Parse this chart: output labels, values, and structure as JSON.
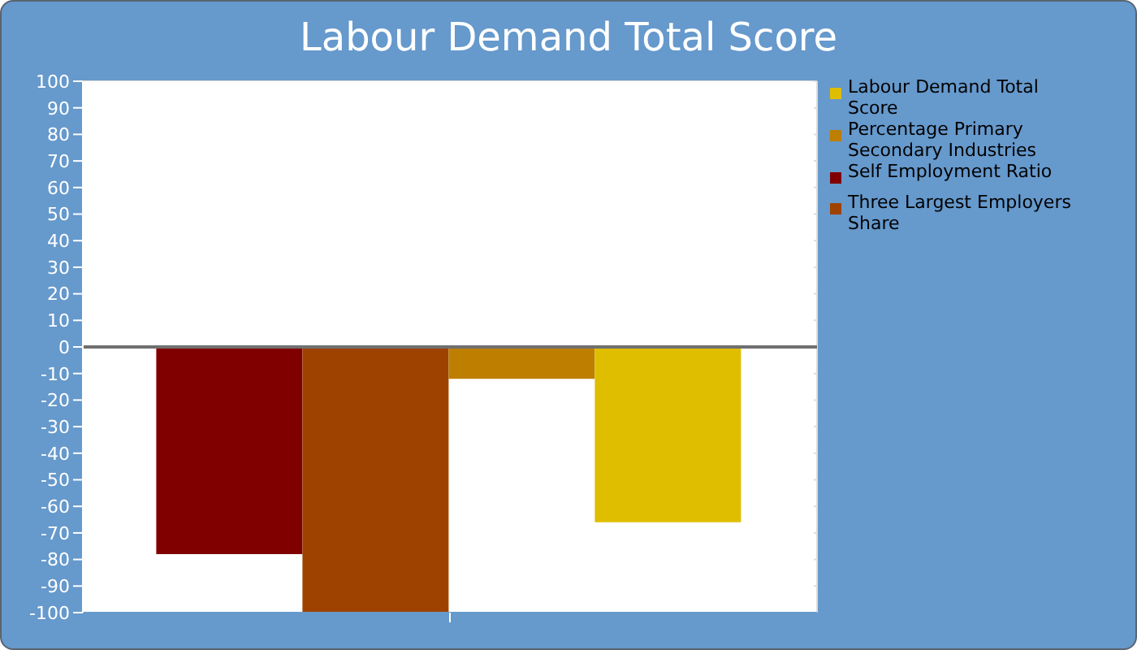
{
  "chart_data": {
    "type": "bar",
    "title": "Labour Demand Total Score",
    "categories": [
      null
    ],
    "series": [
      {
        "name": "Self Employment Ratio",
        "color": "#800000",
        "values": [
          -78
        ]
      },
      {
        "name": "Three Largest Employers Share",
        "color": "#9e4200",
        "values": [
          -100
        ]
      },
      {
        "name": "Percentage Primary Secondary Industries",
        "color": "#be7e00",
        "values": [
          -12
        ]
      },
      {
        "name": "Labour Demand Total Score",
        "color": "#dfbe00",
        "values": [
          -66
        ]
      }
    ],
    "ylim": [
      -100,
      100
    ],
    "yticks": [
      -100,
      -90,
      -80,
      -70,
      -60,
      -50,
      -40,
      -30,
      -20,
      -10,
      0,
      10,
      20,
      30,
      40,
      50,
      60,
      70,
      80,
      90,
      100
    ],
    "ref_lines": [
      {
        "axis": "y",
        "value": 0,
        "color": "#707070"
      }
    ],
    "grid": true,
    "legend": "right"
  }
}
